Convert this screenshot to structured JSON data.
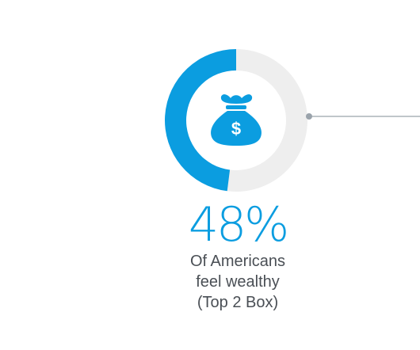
{
  "chart_data": {
    "type": "pie",
    "variant": "donut",
    "values": [
      48,
      52
    ],
    "value_label": "48%",
    "caption": [
      "Of Americans",
      "feel wealthy",
      "(Top 2 Box)"
    ],
    "icon": "money-bag-dollar-icon",
    "icon_symbol": "$",
    "legend": "none",
    "grid": false
  },
  "colors": {
    "accent": "#0b9de0",
    "track": "#eeeeee",
    "caption_text": "#4a4f55",
    "connector": "#9aa3ab",
    "icon_fill": "#0b9de0",
    "icon_symbol": "#ffffff"
  }
}
